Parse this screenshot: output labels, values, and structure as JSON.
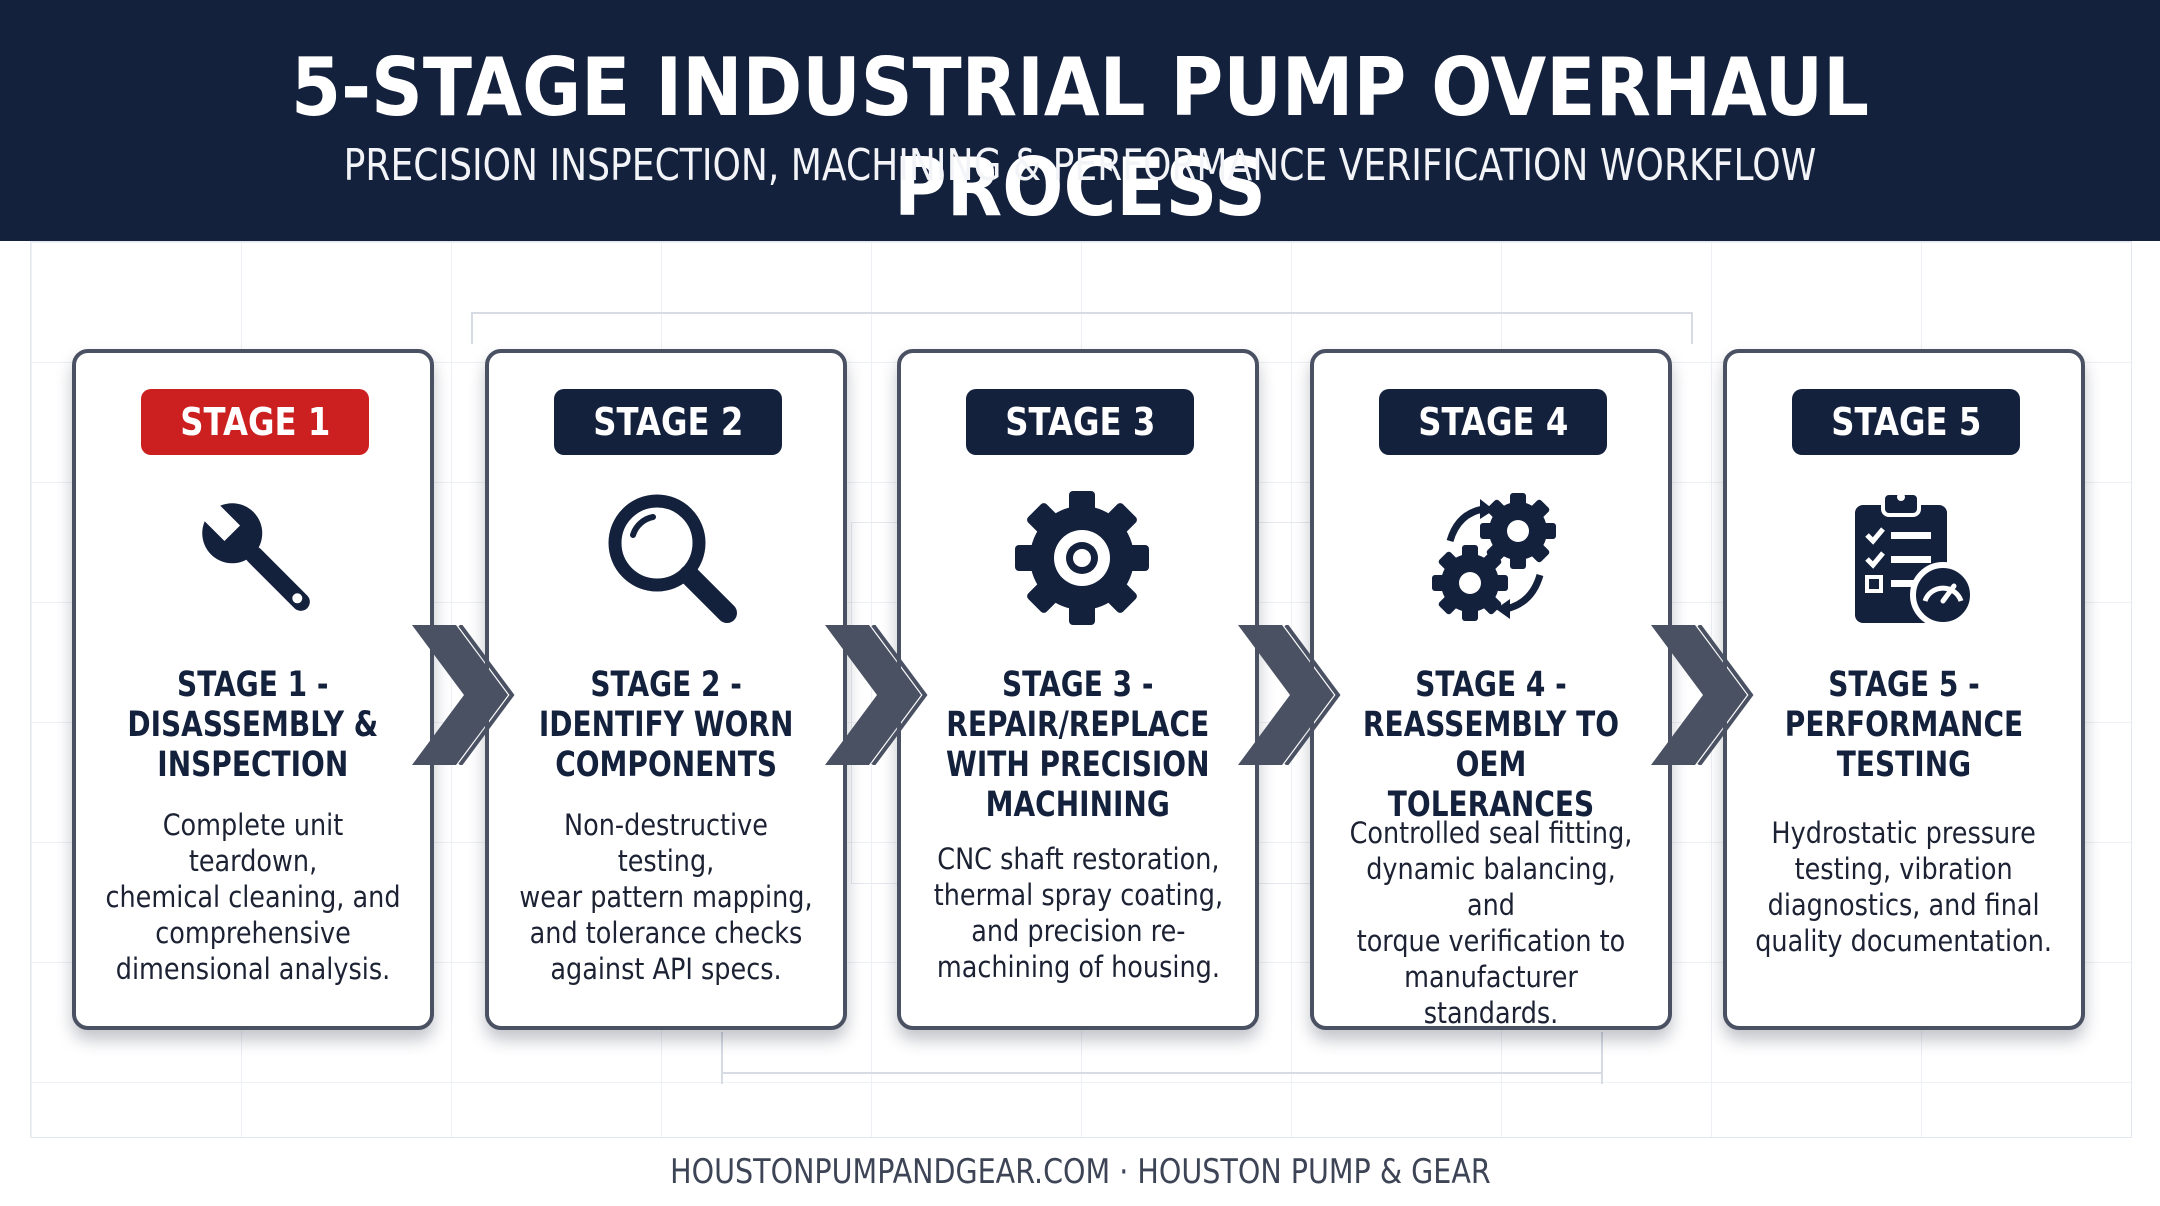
{
  "header": {
    "title": "5-STAGE INDUSTRIAL PUMP OVERHAUL PROCESS",
    "subtitle": "PRECISION INSPECTION, MACHINING & PERFORMANCE VERIFICATION WORKFLOW"
  },
  "colors": {
    "navy": "#14213d",
    "active_red": "#cc1f1f",
    "card_border": "#4a5163",
    "chevron": "#4a5163"
  },
  "stages": [
    {
      "badge": "STAGE 1",
      "active": true,
      "icon": "wrench-icon",
      "title": "STAGE 1 -\nDISASSEMBLY &\nINSPECTION",
      "description": "Complete unit teardown,\nchemical cleaning, and\ncomprehensive\ndimensional analysis."
    },
    {
      "badge": "STAGE 2",
      "active": false,
      "icon": "magnifying-glass-icon",
      "title": "STAGE 2 -\nIDENTIFY WORN\nCOMPONENTS",
      "description": "Non-destructive testing,\nwear pattern mapping,\nand tolerance checks\nagainst API specs."
    },
    {
      "badge": "STAGE 3",
      "active": false,
      "icon": "gear-icon",
      "title": "STAGE 3 -\nREPAIR/REPLACE\nWITH PRECISION\nMACHINING",
      "description": "CNC shaft restoration,\nthermal spray coating,\nand precision re-\nmachining of housing."
    },
    {
      "badge": "STAGE 4",
      "active": false,
      "icon": "gears-cycle-icon",
      "title": "STAGE 4 -\nREASSEMBLY TO\nOEM TOLERANCES",
      "description": "Controlled seal fitting,\ndynamic balancing, and\ntorque verification to\nmanufacturer standards."
    },
    {
      "badge": "STAGE 5",
      "active": false,
      "icon": "clipboard-gauge-icon",
      "title": "STAGE 5 -\nPERFORMANCE\nTESTING",
      "description": "Hydrostatic pressure\ntesting, vibration\ndiagnostics, and final\nquality documentation."
    }
  ],
  "footer": {
    "text": "HOUSTONPUMPANDGEAR.COM · HOUSTON PUMP & GEAR"
  }
}
